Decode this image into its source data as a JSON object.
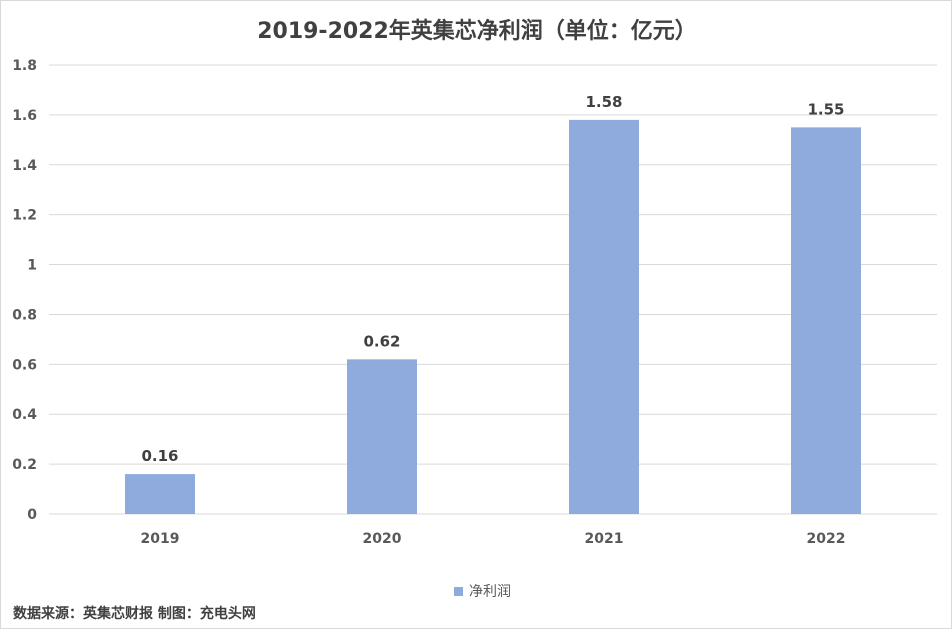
{
  "chart_data": {
    "type": "bar",
    "title": "2019-2022年英集芯净利润（单位：亿元）",
    "categories": [
      "2019",
      "2020",
      "2021",
      "2022"
    ],
    "series": [
      {
        "name": "净利润",
        "values": [
          0.16,
          0.62,
          1.58,
          1.55
        ],
        "color": "#8faadc"
      }
    ],
    "data_labels": [
      "0.16",
      "0.62",
      "1.58",
      "1.55"
    ],
    "ylim": [
      0,
      1.8
    ],
    "yticks": [
      0,
      0.2,
      0.4,
      0.6,
      0.8,
      1,
      1.2,
      1.4,
      1.6,
      1.8
    ],
    "ytick_labels": [
      "0",
      "0.2",
      "0.4",
      "0.6",
      "0.8",
      "1",
      "1.2",
      "1.4",
      "1.6",
      "1.8"
    ],
    "grid": true,
    "legend_position": "bottom",
    "xlabel": "",
    "ylabel": ""
  },
  "colors": {
    "bar": "#8faadc",
    "grid": "#d9d9d9",
    "text": "#595959"
  },
  "source_text": "数据来源：英集芯财报  制图：充电头网"
}
